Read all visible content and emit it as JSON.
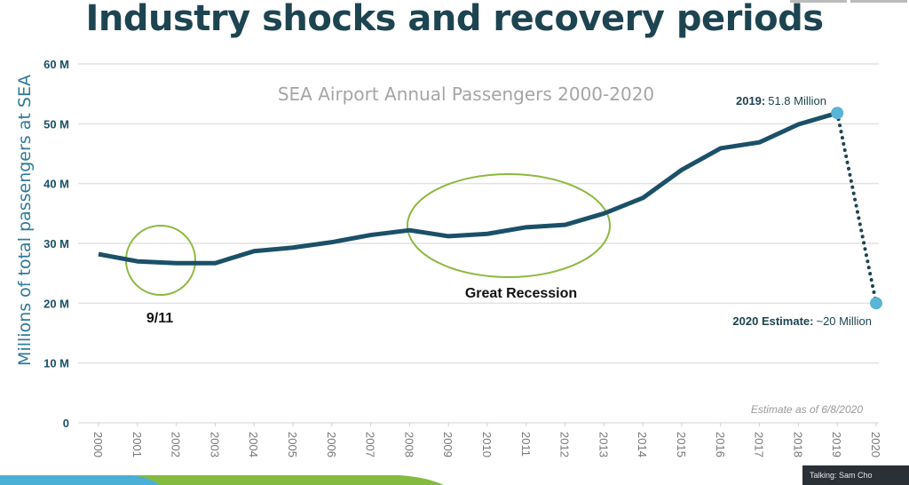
{
  "slide_title": "Industry shocks and recovery periods",
  "chart_data": {
    "type": "line",
    "title": "SEA Airport Annual Passengers 2000-2020",
    "ylabel": "Millions of total passengers at SEA",
    "xlabel": "",
    "ylim": [
      0,
      60
    ],
    "yticks": [
      "0",
      "10 M",
      "20 M",
      "30 M",
      "40 M",
      "50 M",
      "60 M"
    ],
    "yticks_values": [
      0,
      10,
      20,
      30,
      40,
      50,
      60
    ],
    "grid": true,
    "categories": [
      "2000",
      "2001",
      "2002",
      "2003",
      "2004",
      "2005",
      "2006",
      "2007",
      "2008",
      "2009",
      "2010",
      "2011",
      "2012",
      "2013",
      "2014",
      "2015",
      "2016",
      "2017",
      "2018",
      "2019",
      "2020"
    ],
    "series": [
      {
        "values": [
          28.2,
          27.0,
          26.7,
          26.7,
          28.7,
          29.3,
          30.2,
          31.4,
          32.2,
          31.2,
          31.6,
          32.7,
          33.1,
          35.0,
          37.6,
          42.3,
          45.9,
          46.9,
          49.9,
          51.8,
          null
        ],
        "style": "solid",
        "color": "#1a5068"
      },
      {
        "values": [
          null,
          null,
          null,
          null,
          null,
          null,
          null,
          null,
          null,
          null,
          null,
          null,
          null,
          null,
          null,
          null,
          null,
          null,
          null,
          51.8,
          20
        ],
        "style": "dotted",
        "color": "#1d4451"
      }
    ],
    "annotations": {
      "label_2019_year": "2019:",
      "label_2019_value": "51.8 Million",
      "label_2020_year": "2020 Estimate:",
      "label_2020_value": "~20 Million",
      "event_911": "9/11",
      "event_recession": "Great Recession",
      "footnote": "Estimate as of 6/8/2020"
    },
    "colors": {
      "line": "#1a5068",
      "marker": "#5ab4d6",
      "highlight_circle": "#8cb83c",
      "axis_text": "#1a5068"
    }
  },
  "status": {
    "talking": "Talking:  Sam Cho"
  }
}
